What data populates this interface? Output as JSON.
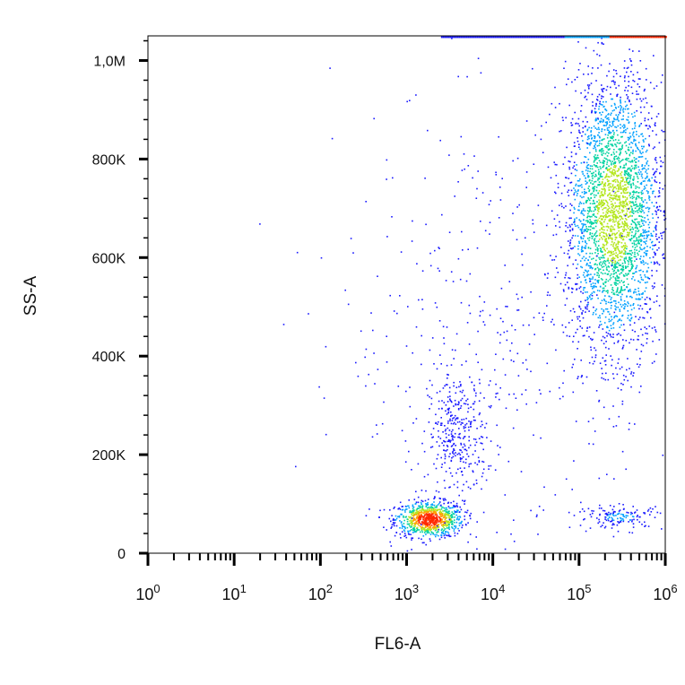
{
  "chart_data": {
    "type": "scatter",
    "xlabel": "FL6-A",
    "ylabel": "SS-A",
    "x_scale": "log",
    "xlim": [
      1,
      1000000
    ],
    "ylim": [
      0,
      1050000
    ],
    "x_ticks": [
      {
        "base": "10",
        "exp": "0",
        "value": 1
      },
      {
        "base": "10",
        "exp": "1",
        "value": 10
      },
      {
        "base": "10",
        "exp": "2",
        "value": 100
      },
      {
        "base": "10",
        "exp": "3",
        "value": 1000
      },
      {
        "base": "10",
        "exp": "4",
        "value": 10000
      },
      {
        "base": "10",
        "exp": "5",
        "value": 100000
      },
      {
        "base": "10",
        "exp": "6",
        "value": 1000000
      }
    ],
    "y_ticks": [
      {
        "label": "0",
        "value": 0
      },
      {
        "label": "200K",
        "value": 200000
      },
      {
        "label": "400K",
        "value": 400000
      },
      {
        "label": "600K",
        "value": 600000
      },
      {
        "label": "800K",
        "value": 800000
      },
      {
        "label": "1,0M",
        "value": 1000000
      }
    ],
    "color_scale": [
      "#1a1aff",
      "#00a0ff",
      "#00d2a0",
      "#b4e61e",
      "#ffa000",
      "#ff2800"
    ],
    "populations": [
      {
        "x_center": 1800,
        "x_spread_decades": 0.2,
        "y_center": 70000,
        "y_spread": 18000,
        "relative_count": 2600,
        "peak_color": "#ff2800"
      },
      {
        "x_center": 3800,
        "x_spread_decades": 0.17,
        "y_center": 240000,
        "y_spread": 65000,
        "relative_count": 1000,
        "peak_color": "#1a1aff"
      },
      {
        "x_center": 250000,
        "x_spread_decades": 0.28,
        "y_center": 690000,
        "y_spread": 140000,
        "relative_count": 9000,
        "peak_color": "#b4e61e"
      },
      {
        "x_center": 300000,
        "x_spread_decades": 0.25,
        "y_center": 75000,
        "y_spread": 12000,
        "relative_count": 450,
        "peak_color": "#00a0ff"
      },
      {
        "x_center": 10000,
        "x_spread_decades": 0.9,
        "y_center": 450000,
        "y_spread": 250000,
        "relative_count": 1300,
        "peak_color": "#1a1aff"
      }
    ],
    "top_saturation_band": {
      "x_from": 2500,
      "x_to": 1000000,
      "y": 1050000
    },
    "grid": false,
    "legend": "none"
  }
}
